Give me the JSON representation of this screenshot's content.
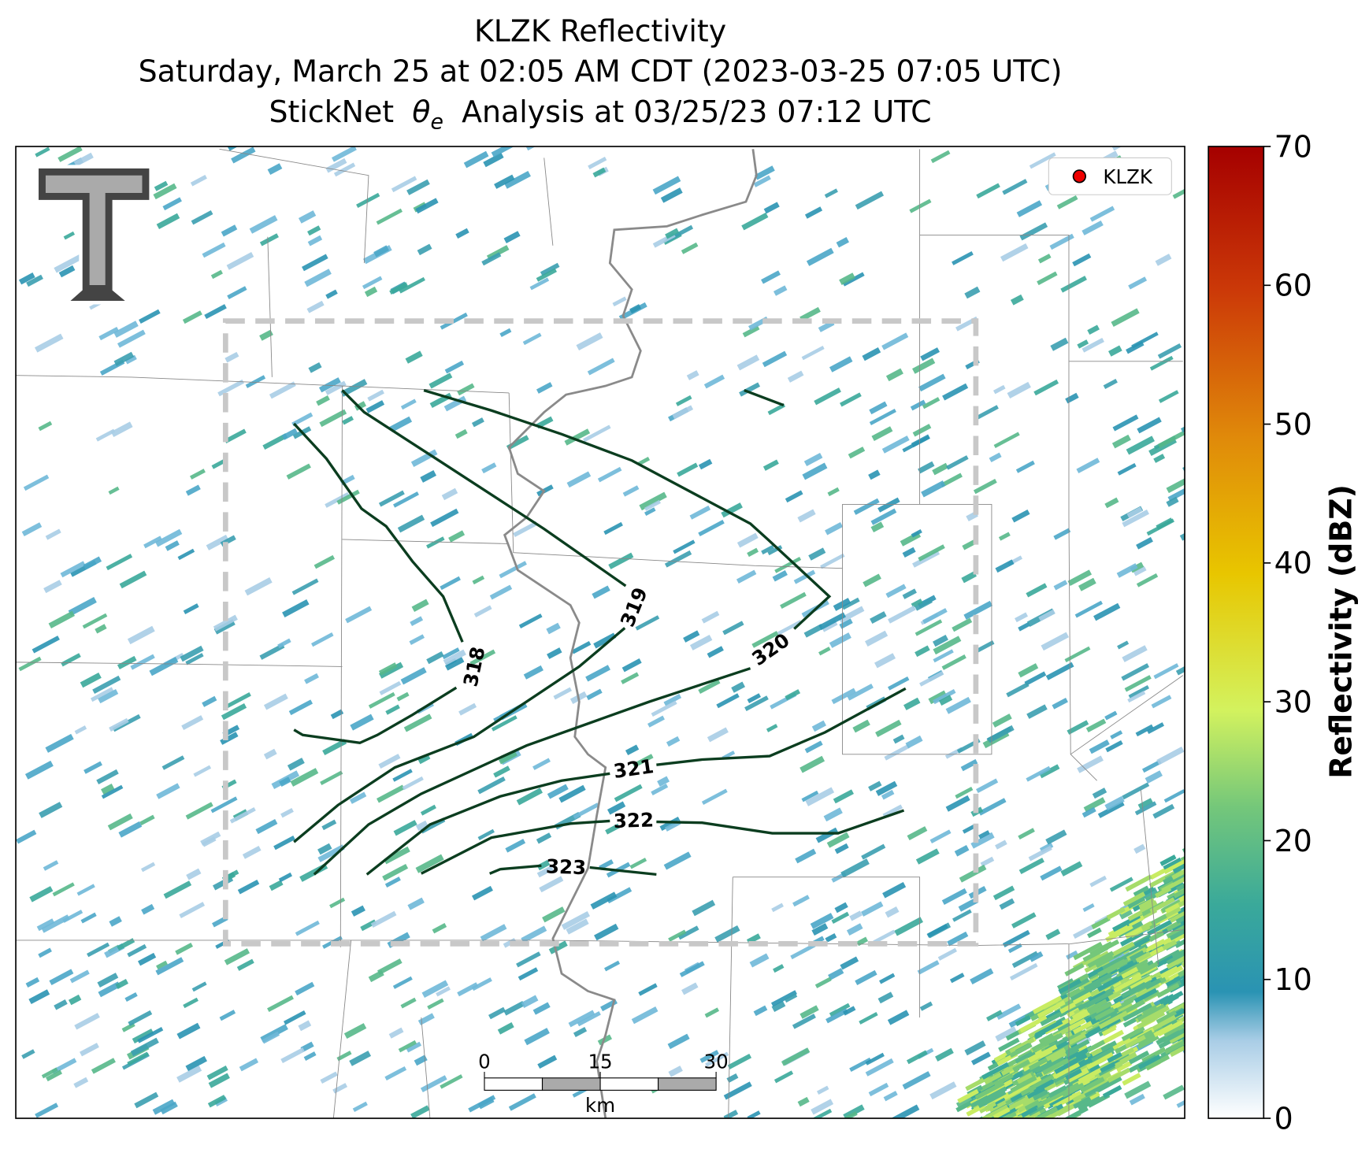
{
  "title": {
    "line1": "KLZK Reflectivity",
    "line2": "Saturday, March 25 at 02:05 AM CDT (2023-03-25 07:05 UTC)",
    "line3": {
      "before": "StickNet",
      "symbol": "θ",
      "subscript": "e",
      "after": "Analysis at 03/25/23 07:12 UTC"
    }
  },
  "legend": {
    "label": "KLZK"
  },
  "colorbar": {
    "label": "Reflectivity (dBZ)",
    "lim": [
      0,
      70
    ],
    "ticks": [
      0,
      10,
      20,
      30,
      40,
      50,
      60,
      70
    ]
  },
  "contours": [
    {
      "value": 318
    },
    {
      "value": 319
    },
    {
      "value": 320
    },
    {
      "value": 321
    },
    {
      "value": 322
    },
    {
      "value": 323
    }
  ],
  "scale_bar": {
    "ticks": [
      0,
      15,
      30
    ],
    "unit": "km"
  }
}
